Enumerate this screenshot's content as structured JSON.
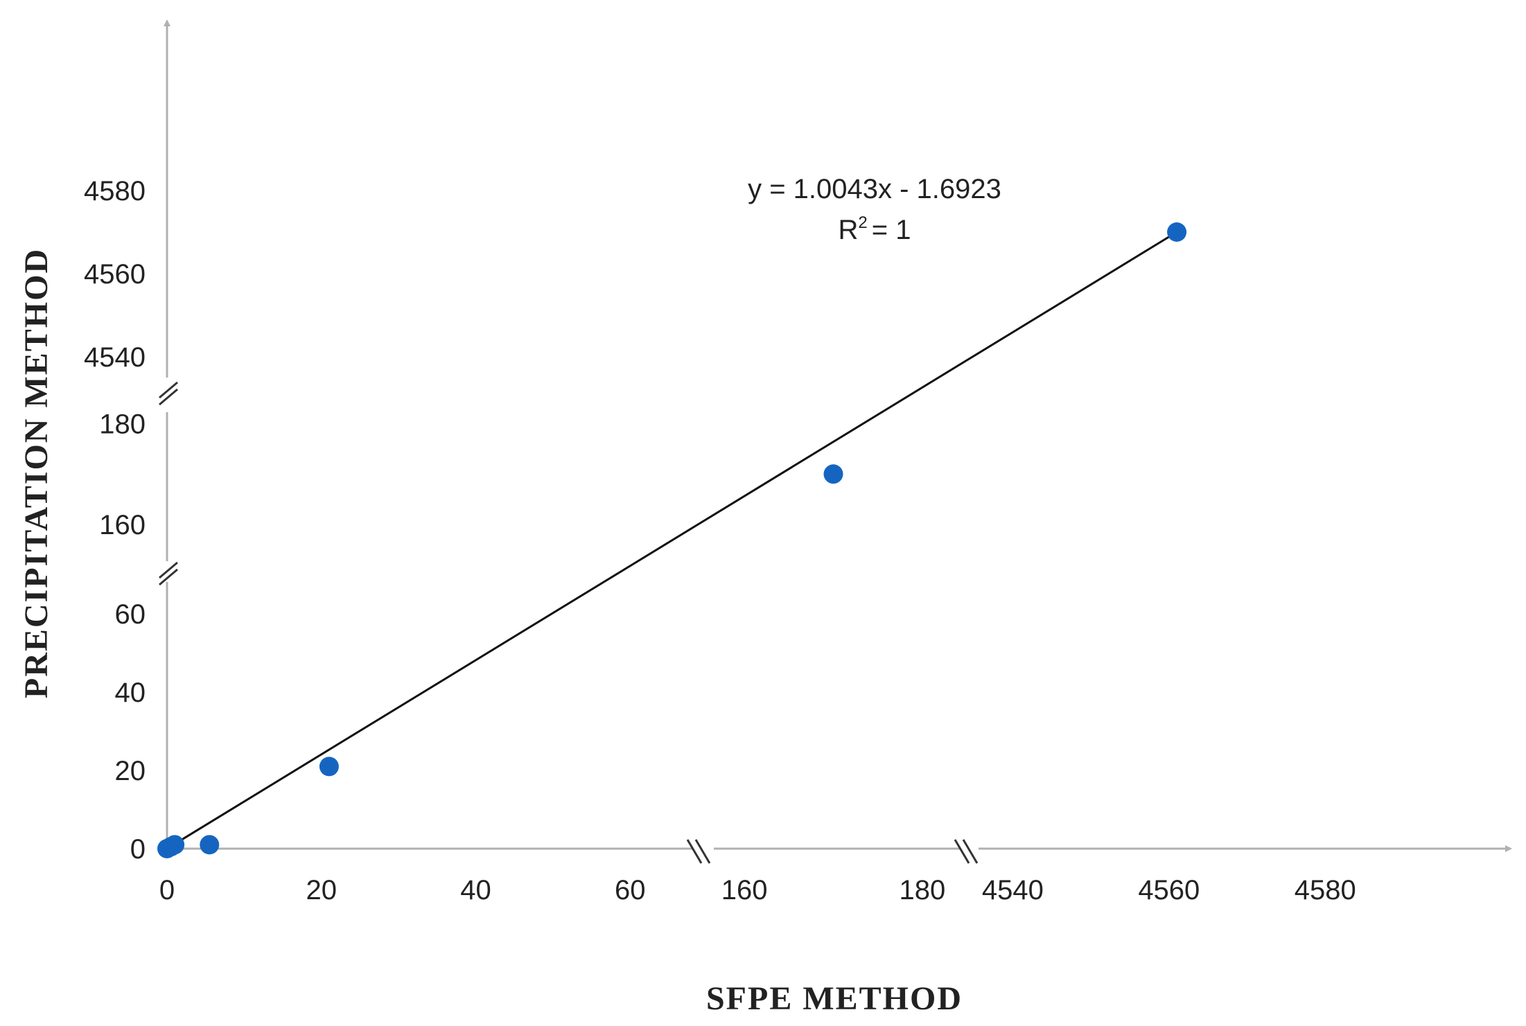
{
  "chart_data": {
    "type": "scatter",
    "title": "",
    "xlabel": "SFPE METHOD",
    "ylabel": "PRECIPITATION METHOD",
    "x_segments": [
      {
        "range": [
          0,
          65
        ],
        "ticks": [
          0,
          20,
          40,
          60
        ]
      },
      {
        "range": [
          155,
          185
        ],
        "ticks": [
          160,
          180
        ]
      },
      {
        "range": [
          4535,
          4590
        ],
        "ticks": [
          4540,
          4560,
          4580
        ]
      }
    ],
    "y_segments": [
      {
        "range": [
          0,
          65
        ],
        "ticks": [
          0,
          20,
          40,
          60
        ]
      },
      {
        "range": [
          150,
          185
        ],
        "ticks": [
          160,
          180
        ]
      },
      {
        "range": [
          4535,
          4600
        ],
        "ticks": [
          4540,
          4560,
          4580
        ]
      }
    ],
    "x_tick_labels": [
      "0",
      "20",
      "40",
      "60",
      "160",
      "180",
      "4540",
      "4560",
      "4580"
    ],
    "y_tick_labels": [
      "0",
      "20",
      "40",
      "60",
      "160",
      "180",
      "4540",
      "4560",
      "4580"
    ],
    "points": [
      {
        "x": 0,
        "y": 0
      },
      {
        "x": 0.5,
        "y": 0.5
      },
      {
        "x": 1,
        "y": 1
      },
      {
        "x": 5.5,
        "y": 1
      },
      {
        "x": 21,
        "y": 21
      },
      {
        "x": 170,
        "y": 170
      },
      {
        "x": 4561,
        "y": 4570
      }
    ],
    "trendline": {
      "slope": 1.0043,
      "intercept": -1.6923,
      "equation": "y = 1.0043x - 1.6923",
      "r2_label": "R",
      "r2_exponent": "2",
      "r2_value": "= 1"
    },
    "colors": {
      "point": "#1565C0",
      "axis": "#b0b0b0",
      "trendline": "#111111",
      "text": "#222222"
    },
    "grid": false,
    "legend": "none"
  }
}
